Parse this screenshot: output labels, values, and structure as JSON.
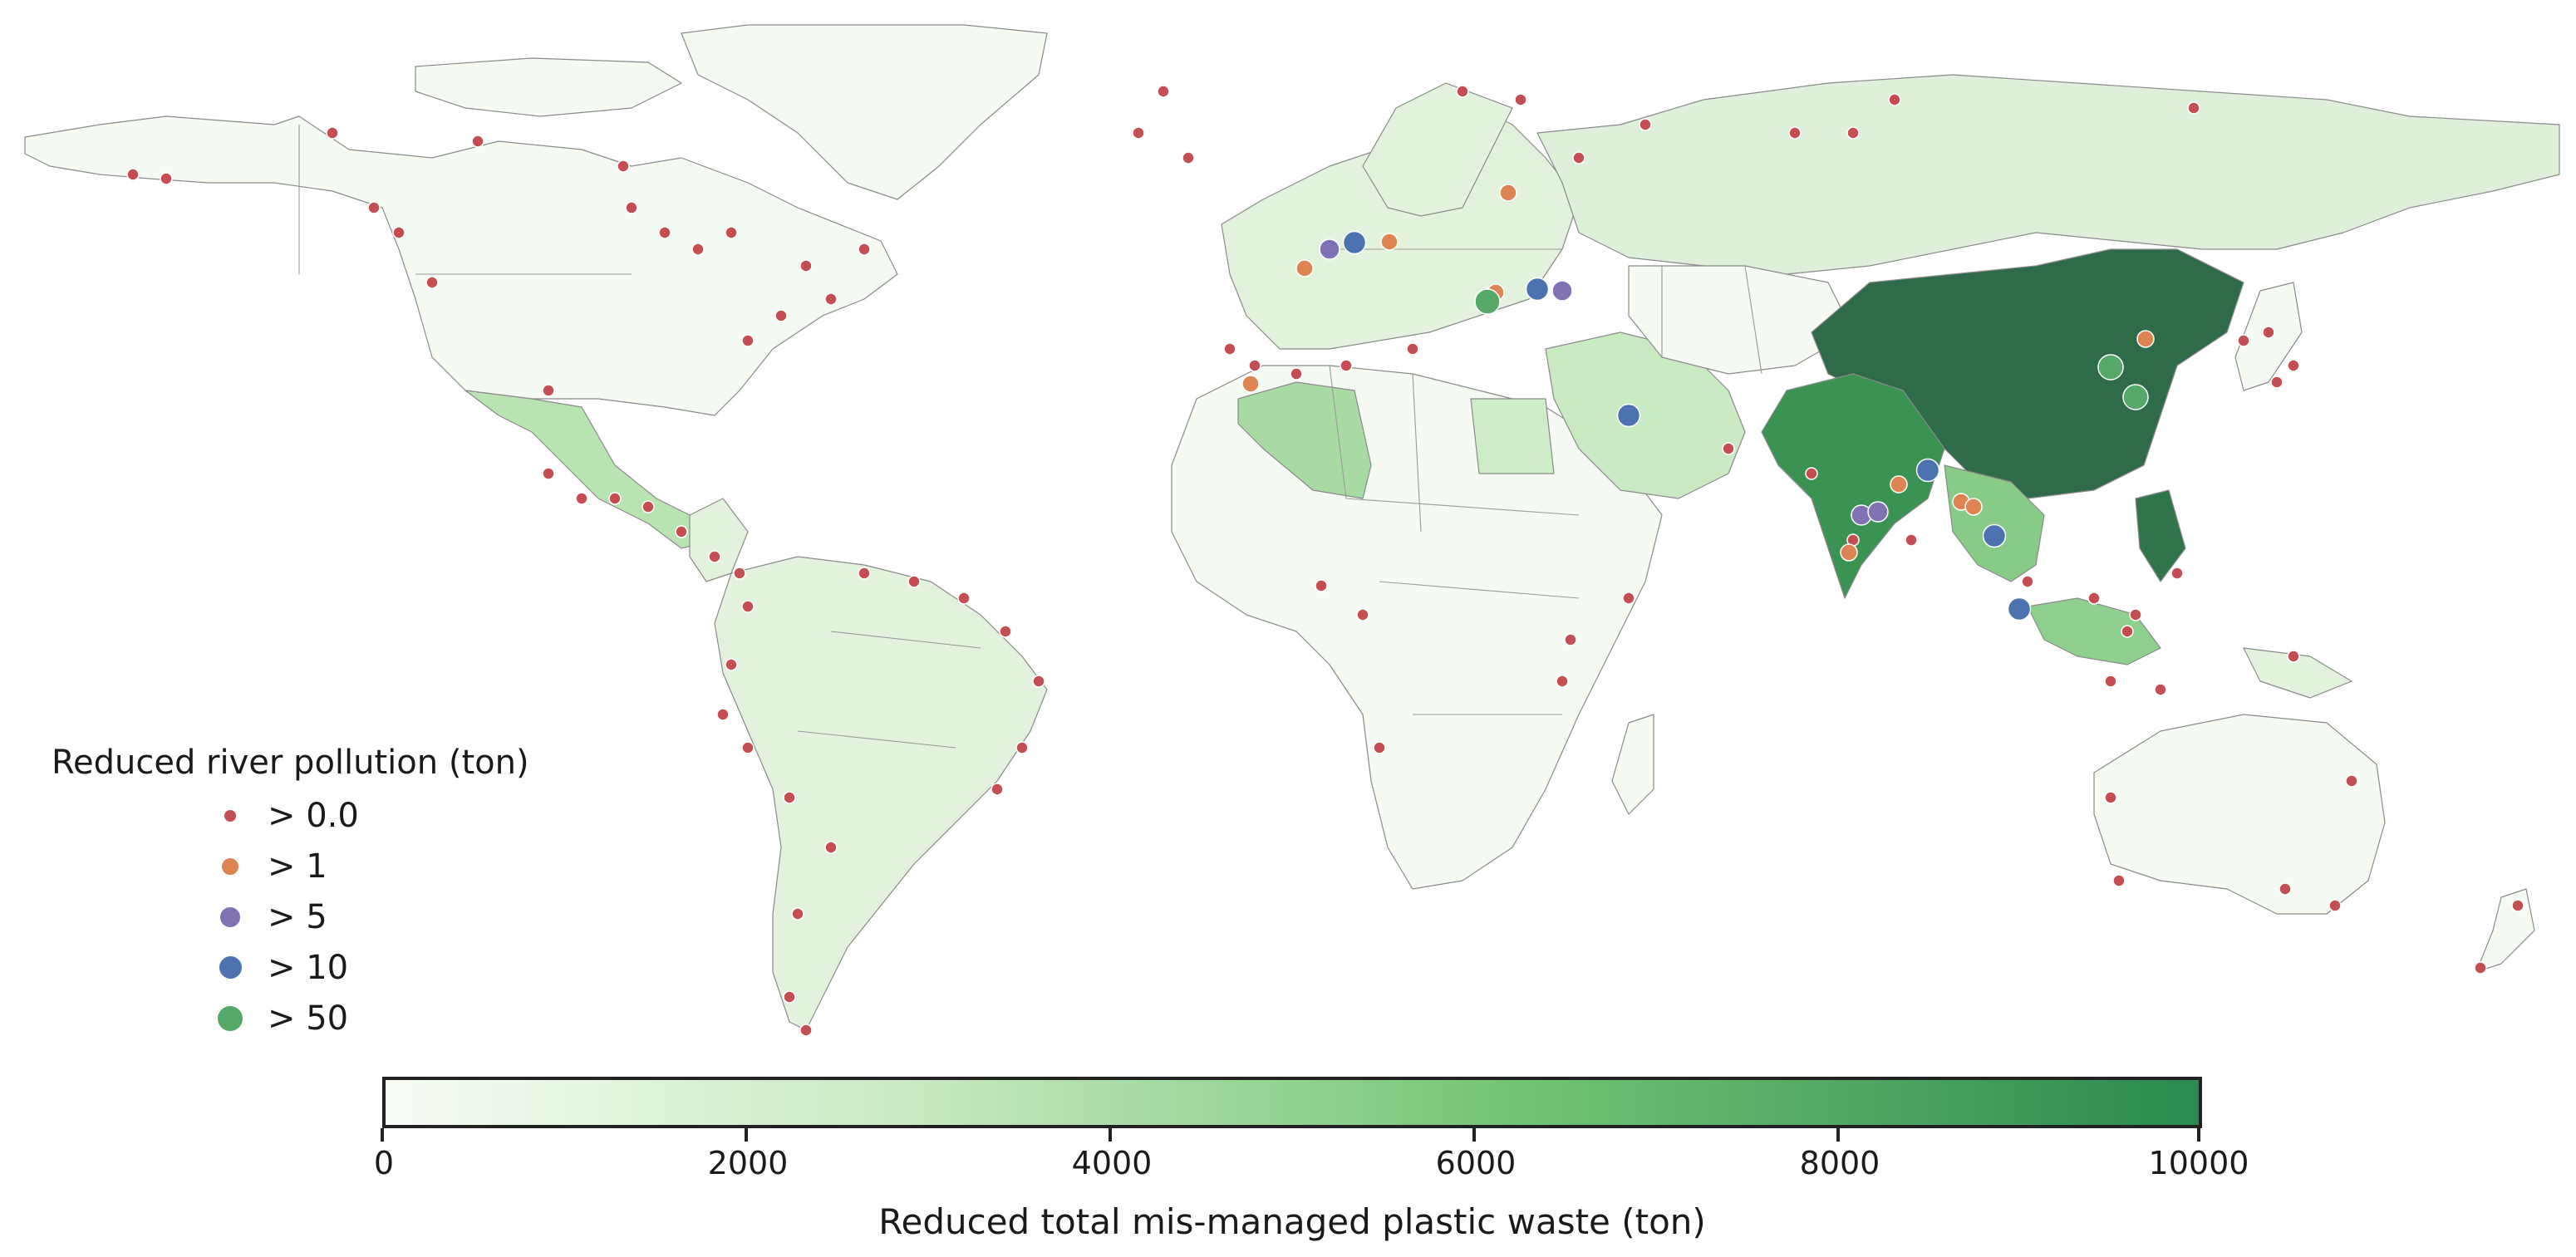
{
  "legend": {
    "title": "Reduced river pollution (ton)",
    "items": [
      {
        "label": "> 0.0",
        "color": "#c44e52",
        "size": "small"
      },
      {
        "label": "> 1",
        "color": "#dd8452",
        "size": "medium-small"
      },
      {
        "label": "> 5",
        "color": "#8172b3",
        "size": "medium"
      },
      {
        "label": "> 10",
        "color": "#4c72b0",
        "size": "medium-large"
      },
      {
        "label": "> 50",
        "color": "#55a868",
        "size": "large"
      }
    ]
  },
  "colorbar": {
    "title": "Reduced total mis-managed plastic waste (ton)",
    "ticks": [
      "0",
      "2000",
      "4000",
      "6000",
      "8000",
      "10000"
    ],
    "range": [
      0,
      10000
    ],
    "colormap": "Greens"
  },
  "chart_data": {
    "type": "choropleth",
    "region_values": {
      "China": 10000,
      "Philippines": 9500,
      "India": 8200,
      "Indonesia": 5200,
      "Algeria": 4200,
      "Thailand": 5500,
      "Mexico": 3500,
      "Ukraine": 3300,
      "Saudi Arabia": 2800,
      "Egypt": 2600,
      "Russia": 1200,
      "Malaysia": 5000
    }
  }
}
